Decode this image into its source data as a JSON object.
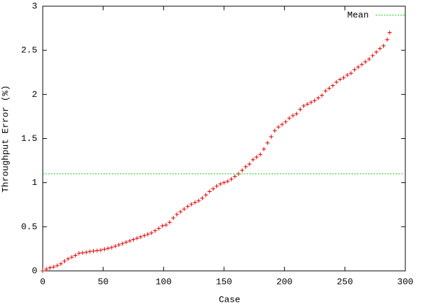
{
  "chart_data": {
    "type": "scatter",
    "xlabel": "Case",
    "ylabel": "Throughput Error (%)",
    "xlim": [
      0,
      300
    ],
    "xticks": [
      0,
      50,
      100,
      150,
      200,
      250,
      300
    ],
    "ylim": [
      0,
      3
    ],
    "yticks": [
      0,
      0.5,
      1,
      1.5,
      2,
      2.5,
      3
    ],
    "series": [
      {
        "color": "#e00000",
        "x": [
          0,
          3,
          6,
          9,
          12,
          15,
          18,
          21,
          24,
          27,
          30,
          33,
          36,
          39,
          42,
          45,
          48,
          51,
          54,
          57,
          60,
          63,
          66,
          69,
          72,
          75,
          78,
          81,
          84,
          87,
          90,
          93,
          96,
          99,
          102,
          105,
          108,
          111,
          114,
          117,
          120,
          123,
          126,
          129,
          132,
          135,
          138,
          141,
          144,
          147,
          150,
          153,
          156,
          159,
          162,
          165,
          168,
          171,
          174,
          177,
          180,
          183,
          186,
          189,
          192,
          195,
          198,
          201,
          204,
          207,
          210,
          213,
          216,
          219,
          222,
          225,
          228,
          231,
          234,
          237,
          240,
          243,
          246,
          249,
          252,
          255,
          258,
          261,
          264,
          267,
          270,
          273,
          276,
          279,
          282,
          285,
          287
        ],
        "values": [
          0,
          0.02,
          0.035,
          0.045,
          0.06,
          0.08,
          0.11,
          0.135,
          0.155,
          0.175,
          0.2,
          0.205,
          0.21,
          0.22,
          0.225,
          0.23,
          0.235,
          0.245,
          0.255,
          0.265,
          0.28,
          0.295,
          0.31,
          0.325,
          0.34,
          0.355,
          0.37,
          0.385,
          0.4,
          0.415,
          0.43,
          0.455,
          0.48,
          0.51,
          0.52,
          0.55,
          0.6,
          0.64,
          0.67,
          0.7,
          0.73,
          0.755,
          0.775,
          0.795,
          0.825,
          0.86,
          0.9,
          0.93,
          0.96,
          0.985,
          1.0,
          1.015,
          1.04,
          1.07,
          1.1,
          1.14,
          1.18,
          1.21,
          1.26,
          1.29,
          1.32,
          1.38,
          1.45,
          1.52,
          1.59,
          1.63,
          1.66,
          1.69,
          1.73,
          1.76,
          1.78,
          1.83,
          1.87,
          1.89,
          1.91,
          1.93,
          1.96,
          1.99,
          2.04,
          2.07,
          2.1,
          2.14,
          2.17,
          2.19,
          2.22,
          2.24,
          2.28,
          2.31,
          2.34,
          2.37,
          2.4,
          2.44,
          2.48,
          2.52,
          2.55,
          2.62,
          2.7
        ]
      }
    ],
    "mean": {
      "name": "Mean",
      "value": 1.1,
      "color": "#00cc00"
    }
  }
}
